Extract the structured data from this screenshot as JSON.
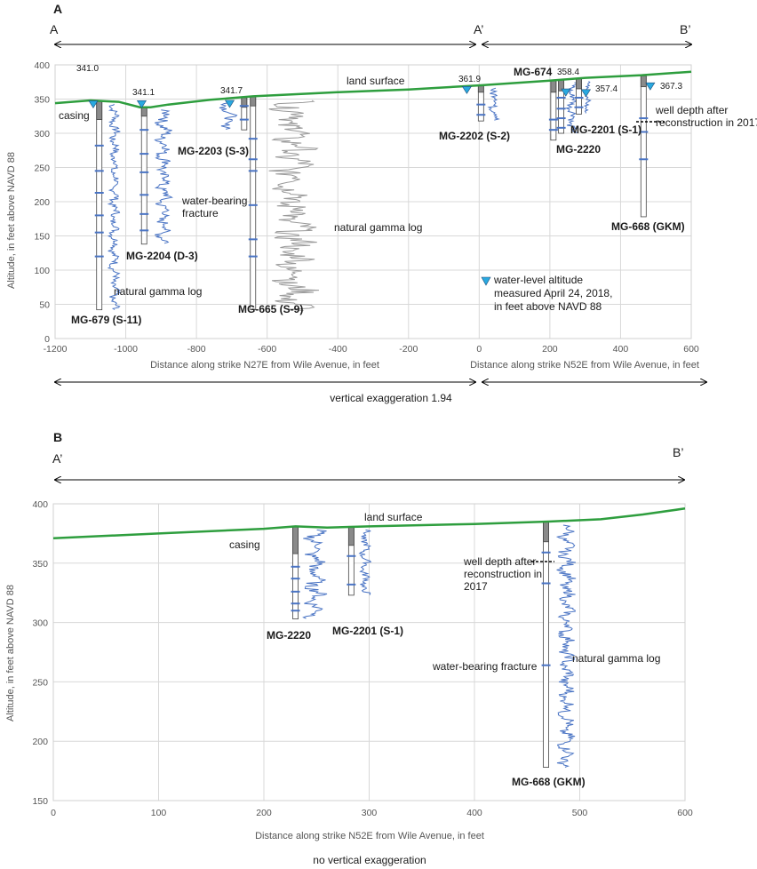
{
  "panel_a": {
    "letter": "A",
    "arrow_left_label": "A",
    "arrow_mid_label": "A’",
    "arrow_right_label": "B’",
    "y_axis_title": "Altitude, in feet above NAVD 88",
    "x_axis_title_left": "Distance along strike N27E from Wile Avenue, in feet",
    "x_axis_title_right": "Distance along strike N52E from Wile Avenue, in feet",
    "exaggeration": "vertical exaggeration 1.94",
    "y_ticks": [
      "400",
      "350",
      "300",
      "250",
      "200",
      "150",
      "100",
      "50",
      "0"
    ],
    "x_ticks": [
      "-1200",
      "-1000",
      "-800",
      "-600",
      "-400",
      "-200",
      "0",
      "200",
      "400",
      "600"
    ],
    "labels": {
      "land_surface": "land surface",
      "casing": "casing",
      "water_bearing_fracture": "water-bearing\nfracture",
      "natural_gamma_log_1": "natural gamma log",
      "natural_gamma_log_2": "natural gamma log",
      "well_depth_note": "well depth after\nreconstruction in 2017",
      "legend_note": "water-level altitude\nmeasured April 24, 2018,\nin feet above NAVD 88"
    },
    "wells": [
      {
        "name": "MG-679 (S-11)",
        "water_level": "341.0"
      },
      {
        "name": "MG-2204 (D-3)",
        "water_level": "341.1"
      },
      {
        "name": "MG-2203 (S-3)",
        "water_level": "341.7"
      },
      {
        "name": "MG-665 (S-9)",
        "water_level": ""
      },
      {
        "name": "MG-2202 (S-2)",
        "water_level": "361.9"
      },
      {
        "name": "MG-674",
        "water_level": "358.4"
      },
      {
        "name": "MG-2220",
        "water_level": "357.4"
      },
      {
        "name": "MG-2201 (S-1)",
        "water_level": ""
      },
      {
        "name": "MG-668 (GKM)",
        "water_level": "367.3"
      }
    ]
  },
  "panel_b": {
    "letter": "B",
    "arrow_left_label": "A’",
    "arrow_right_label": "B’",
    "y_axis_title": "Altitude, in feet above NAVD 88",
    "x_axis_title": "Distance along strike N52E from Wile Avenue, in feet",
    "exaggeration": "no vertical exaggeration",
    "y_ticks": [
      "400",
      "350",
      "300",
      "250",
      "200",
      "150"
    ],
    "x_ticks": [
      "0",
      "100",
      "200",
      "300",
      "400",
      "500",
      "600"
    ],
    "labels": {
      "land_surface": "land surface",
      "casing": "casing",
      "well_depth_note": "well depth after\nreconstruction in\n2017",
      "water_bearing_fracture": "water-bearing fracture",
      "natural_gamma_log": "natural gamma log"
    },
    "wells": [
      {
        "name": "MG-2220"
      },
      {
        "name": "MG-2201 (S-1)"
      },
      {
        "name": "MG-668 (GKM)"
      }
    ]
  },
  "colors": {
    "land_surface": "#2e9e3e",
    "gamma_log": "#4a74c4",
    "water_level": "#29a9e0",
    "casing": "#8a8a8a",
    "grid": "#d8d8d8",
    "gamma_log_gray": "#9a9a9a"
  }
}
